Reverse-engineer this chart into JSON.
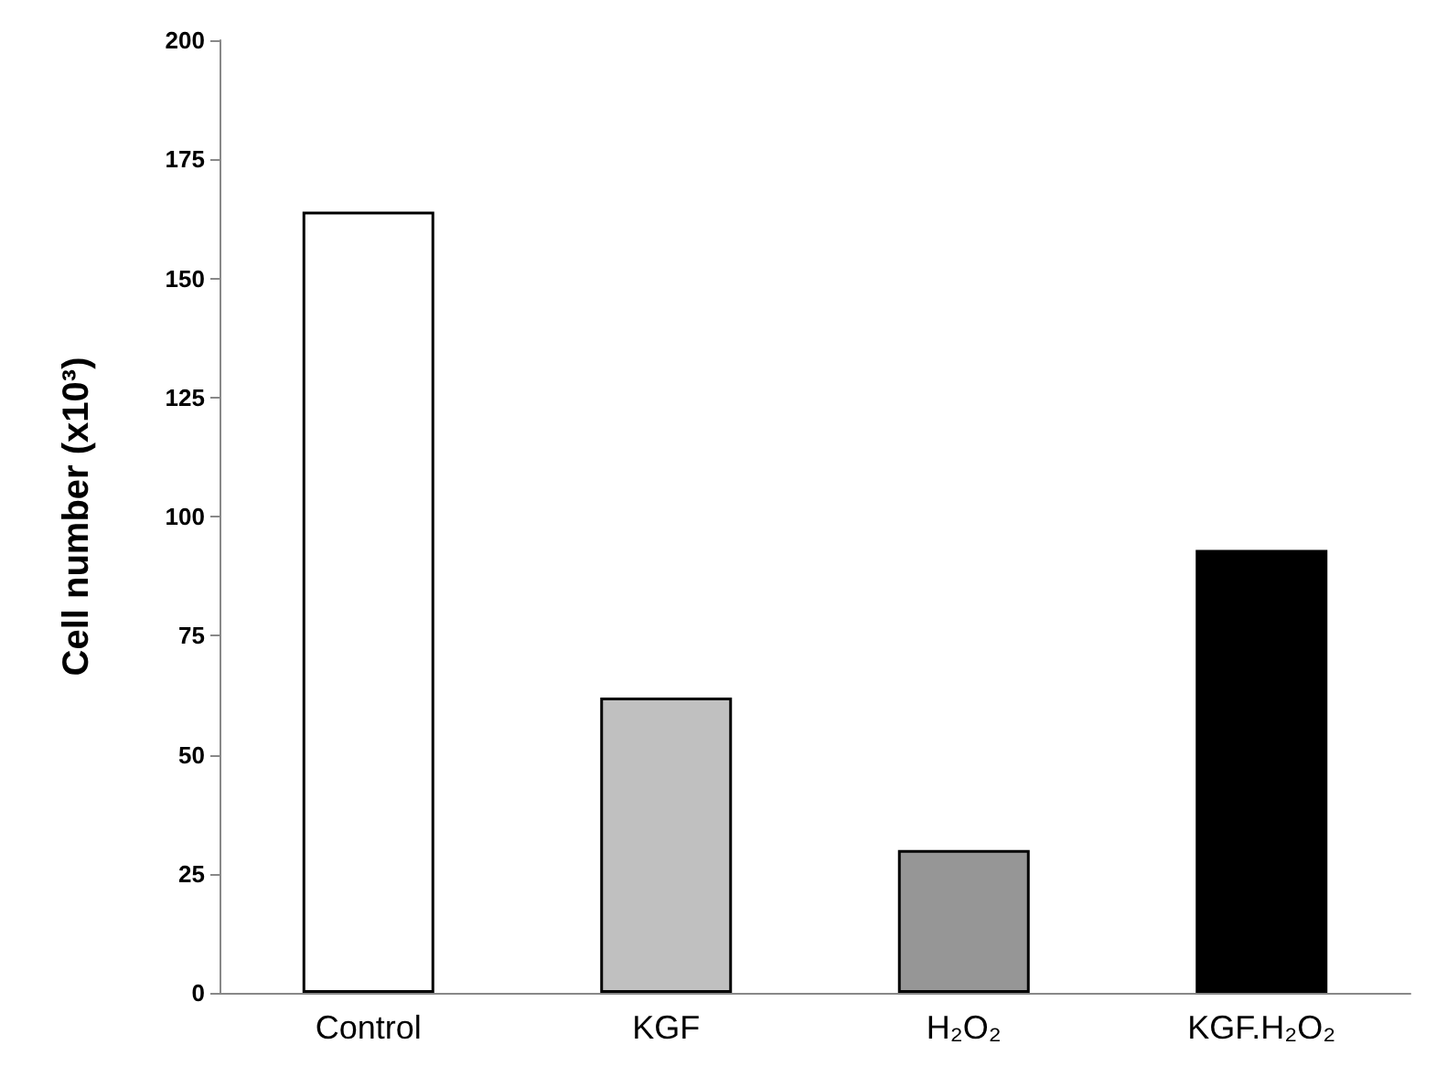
{
  "chart_data": {
    "type": "bar",
    "ylabel": "Cell number (x10³)",
    "categories": [
      "Control",
      "KGF",
      "H₂O₂",
      "KGF.H₂O₂"
    ],
    "values": [
      164,
      62,
      30,
      93
    ],
    "colors": [
      "#ffffff",
      "#c0c0c0",
      "#969696",
      "#000000"
    ],
    "ylim": [
      0,
      200
    ],
    "yticks": [
      0,
      25,
      50,
      75,
      100,
      125,
      150,
      175,
      200
    ],
    "grid": false
  }
}
